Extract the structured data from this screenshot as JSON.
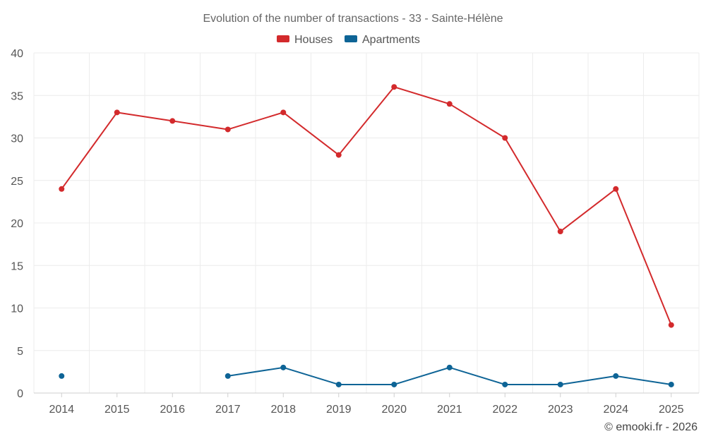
{
  "chart_data": {
    "type": "line",
    "title": "Evolution of the number of transactions - 33 - Sainte-Hélène",
    "categories": [
      "2014",
      "2015",
      "2016",
      "2017",
      "2018",
      "2019",
      "2020",
      "2021",
      "2022",
      "2023",
      "2024",
      "2025"
    ],
    "series": [
      {
        "name": "Houses",
        "color": "#d32a2c",
        "values": [
          24,
          33,
          32,
          31,
          33,
          28,
          36,
          34,
          30,
          19,
          24,
          8
        ]
      },
      {
        "name": "Apartments",
        "color": "#0e6496",
        "values": [
          2,
          null,
          null,
          2,
          3,
          1,
          1,
          3,
          1,
          1,
          2,
          1
        ]
      }
    ],
    "ylim": [
      0,
      40
    ],
    "yticks": [
      0,
      5,
      10,
      15,
      20,
      25,
      30,
      35,
      40
    ],
    "xlabel": "",
    "ylabel": "",
    "grid": true,
    "legend": "top-center"
  },
  "credit": "© emooki.fr - 2026"
}
